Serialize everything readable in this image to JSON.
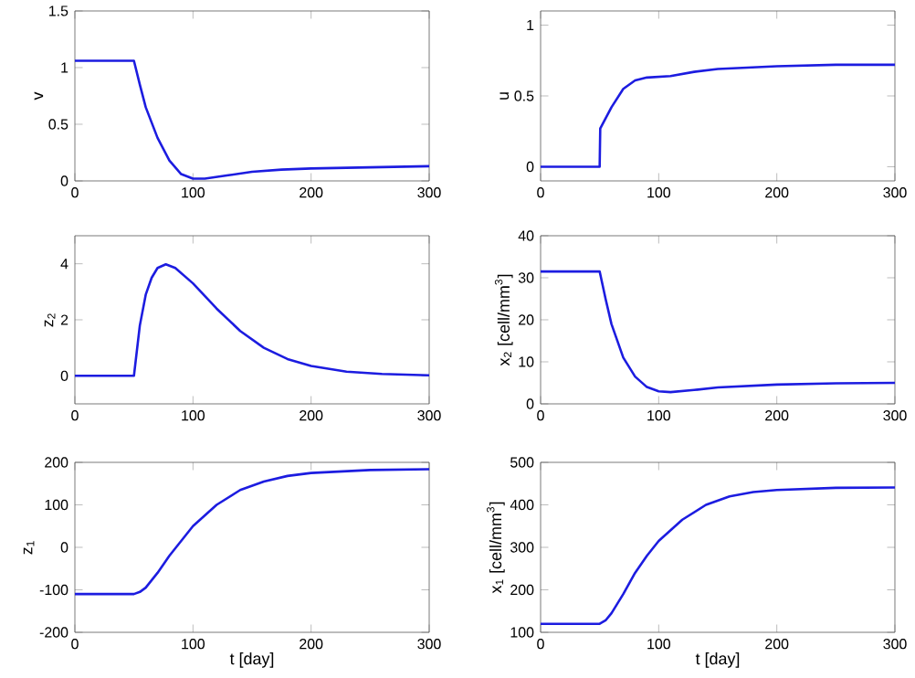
{
  "chart_data": [
    {
      "type": "line",
      "ylabel": "v",
      "color": "#1c1ce0",
      "xlim": [
        0,
        300
      ],
      "xticks": [
        0,
        100,
        200,
        300
      ],
      "ylim": [
        0,
        1.5
      ],
      "yticks": [
        0,
        0.5,
        1,
        1.5
      ],
      "x": [
        0,
        50,
        55,
        60,
        70,
        80,
        90,
        100,
        110,
        130,
        150,
        175,
        200,
        250,
        300
      ],
      "values": [
        1.06,
        1.06,
        0.85,
        0.65,
        0.38,
        0.18,
        0.06,
        0.02,
        0.02,
        0.05,
        0.08,
        0.1,
        0.11,
        0.12,
        0.13
      ]
    },
    {
      "type": "line",
      "ylabel": "u",
      "color": "#1c1ce0",
      "xlim": [
        0,
        300
      ],
      "xticks": [
        0,
        100,
        200,
        300
      ],
      "ylim": [
        -0.1,
        1.1
      ],
      "yticks": [
        0,
        0.5,
        1
      ],
      "x": [
        0,
        50,
        50.5,
        60,
        70,
        80,
        90,
        110,
        130,
        150,
        200,
        250,
        300
      ],
      "values": [
        0,
        0,
        0.27,
        0.42,
        0.55,
        0.61,
        0.63,
        0.64,
        0.67,
        0.69,
        0.71,
        0.72,
        0.72
      ]
    },
    {
      "type": "line",
      "ylabel": "z$_{2}$",
      "color": "#1c1ce0",
      "xlim": [
        0,
        300
      ],
      "xticks": [
        0,
        100,
        200,
        300
      ],
      "ylim": [
        -1,
        5
      ],
      "yticks": [
        0,
        2,
        4
      ],
      "x": [
        0,
        50,
        55,
        60,
        65,
        70,
        77,
        85,
        100,
        120,
        140,
        160,
        180,
        200,
        230,
        260,
        300
      ],
      "values": [
        0,
        0,
        1.8,
        2.9,
        3.5,
        3.85,
        3.98,
        3.85,
        3.3,
        2.4,
        1.6,
        1.0,
        0.6,
        0.35,
        0.15,
        0.07,
        0.02
      ]
    },
    {
      "type": "line",
      "ylabel": "x$_{2}$ [cell/mm$^{3}$]",
      "color": "#1c1ce0",
      "xlim": [
        0,
        300
      ],
      "xticks": [
        0,
        100,
        200,
        300
      ],
      "ylim": [
        0,
        40
      ],
      "yticks": [
        0,
        10,
        20,
        30,
        40
      ],
      "x": [
        0,
        50,
        55,
        60,
        70,
        80,
        90,
        100,
        110,
        130,
        150,
        200,
        250,
        300
      ],
      "values": [
        31.5,
        31.5,
        25,
        19,
        11,
        6.5,
        4,
        3,
        2.8,
        3.3,
        3.9,
        4.6,
        4.9,
        5
      ]
    },
    {
      "type": "line",
      "ylabel": "z$_{1}$",
      "xlabel": "t [day]",
      "color": "#1c1ce0",
      "xlim": [
        0,
        300
      ],
      "xticks": [
        0,
        100,
        200,
        300
      ],
      "ylim": [
        -200,
        200
      ],
      "yticks": [
        -200,
        -100,
        0,
        100,
        200
      ],
      "x": [
        0,
        50,
        55,
        60,
        70,
        80,
        90,
        100,
        120,
        140,
        160,
        180,
        200,
        250,
        300
      ],
      "values": [
        -110,
        -110,
        -105,
        -95,
        -60,
        -20,
        15,
        50,
        100,
        135,
        155,
        168,
        175,
        182,
        184
      ]
    },
    {
      "type": "line",
      "ylabel": "x$_{1}$ [cell/mm$^{3}$]",
      "xlabel": "t [day]",
      "color": "#1c1ce0",
      "xlim": [
        0,
        300
      ],
      "xticks": [
        0,
        100,
        200,
        300
      ],
      "ylim": [
        100,
        500
      ],
      "yticks": [
        100,
        200,
        300,
        400,
        500
      ],
      "x": [
        0,
        50,
        55,
        60,
        70,
        80,
        90,
        100,
        120,
        140,
        160,
        180,
        200,
        250,
        300
      ],
      "values": [
        120,
        120,
        128,
        145,
        190,
        240,
        280,
        315,
        365,
        400,
        420,
        430,
        435,
        440,
        441
      ]
    }
  ]
}
